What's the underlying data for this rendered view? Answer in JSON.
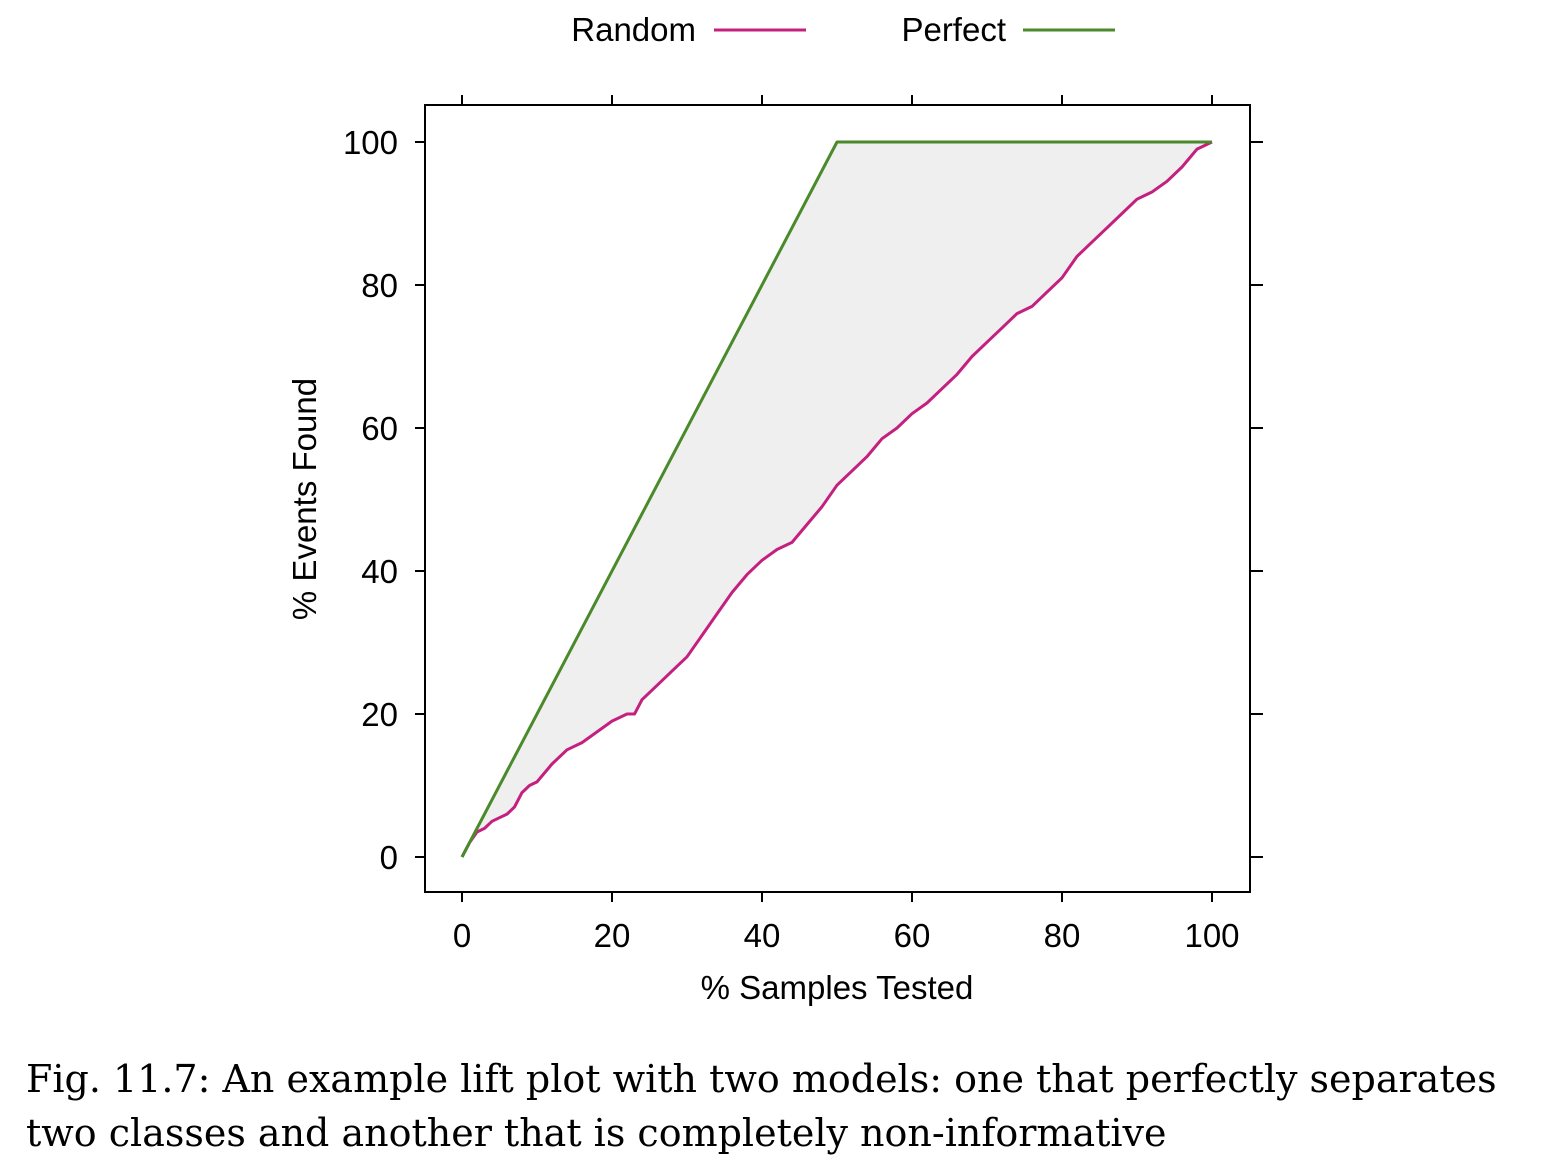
{
  "caption": "Fig. 11.7: An example lift plot with two models: one that perfectly separates two classes and another that is completely non-informative",
  "colors": {
    "random": "#c4207f",
    "perfect": "#4a8a2a",
    "fill": "#efefef",
    "axis": "#000000"
  },
  "chart_data": {
    "type": "line",
    "xlabel": "% Samples Tested",
    "ylabel": "% Events Found",
    "xlim": [
      0,
      100
    ],
    "ylim": [
      0,
      100
    ],
    "xticks": [
      0,
      20,
      40,
      60,
      80,
      100
    ],
    "yticks": [
      0,
      20,
      40,
      60,
      80,
      100
    ],
    "legend": {
      "placement": "top",
      "entries": [
        "Random",
        "Perfect"
      ]
    },
    "shaded_region": "between Perfect and Random curves",
    "series": [
      {
        "name": "Random",
        "color": "#c4207f",
        "x": [
          0,
          1,
          2,
          3,
          4,
          5,
          6,
          7,
          8,
          9,
          10,
          12,
          14,
          16,
          18,
          20,
          22,
          23,
          24,
          26,
          28,
          30,
          32,
          34,
          36,
          38,
          40,
          42,
          44,
          46,
          48,
          50,
          52,
          54,
          56,
          58,
          60,
          62,
          64,
          66,
          68,
          70,
          72,
          74,
          76,
          78,
          80,
          82,
          84,
          86,
          88,
          90,
          92,
          94,
          96,
          98,
          100
        ],
        "y": [
          0,
          2,
          3.5,
          4,
          5,
          5.5,
          6,
          7,
          9,
          10,
          10.5,
          13,
          15,
          16,
          17.5,
          19,
          20,
          20,
          22,
          24,
          26,
          28,
          31,
          34,
          37,
          39.5,
          41.5,
          43,
          44,
          46.5,
          49,
          52,
          54,
          56,
          58.5,
          60,
          62,
          63.5,
          65.5,
          67.5,
          70,
          72,
          74,
          76,
          77,
          79,
          81,
          84,
          86,
          88,
          90,
          92,
          93,
          94.5,
          96.5,
          99,
          100
        ]
      },
      {
        "name": "Perfect",
        "color": "#4a8a2a",
        "x": [
          0,
          50,
          100
        ],
        "y": [
          0,
          100,
          100
        ]
      }
    ]
  }
}
